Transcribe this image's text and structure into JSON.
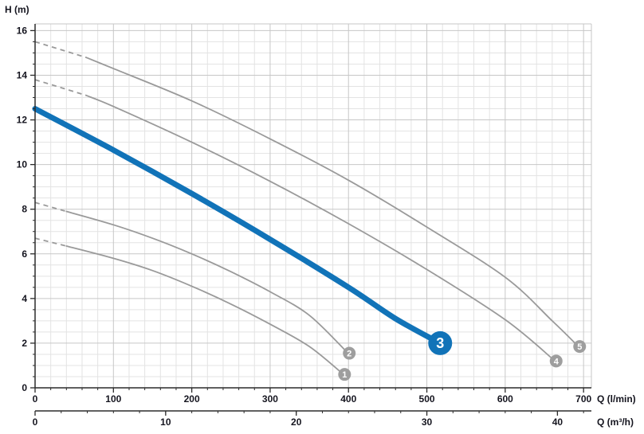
{
  "chart_data": {
    "type": "line",
    "title": "",
    "ylabel": "H (m)",
    "xlabel_primary": "Q (l/min)",
    "xlabel_secondary": "Q (m³/h)",
    "x_range_lmin": [
      0,
      710
    ],
    "y_range_m": [
      0,
      16.3
    ],
    "x_major_ticks": [
      0,
      100,
      200,
      300,
      400,
      500,
      600,
      700
    ],
    "x_minor_step": 20,
    "y_major_ticks": [
      0,
      2,
      4,
      6,
      8,
      10,
      12,
      14,
      16
    ],
    "y_minor_step": 0.5,
    "grid": true,
    "legend": "none",
    "secondary_axis": {
      "unit": "m³/h",
      "ticks": [
        0,
        10,
        20,
        30,
        40
      ],
      "minor_step": 2,
      "lmin_per_unit": 16.6667
    },
    "colors": {
      "highlight": "#1173b8",
      "curve": "#9a9a9a",
      "grid_minor": "#e3e3e3",
      "grid_major": "#c7c7c7",
      "axis": "#2b2b2b",
      "text": "#15151f",
      "badge_gray": "#9e9e9e",
      "badge_text": "#ffffff"
    },
    "series": [
      {
        "label": "1",
        "highlight": false,
        "dashed": [
          [
            0,
            6.7
          ],
          [
            40,
            6.35
          ]
        ],
        "points": [
          [
            40,
            6.35
          ],
          [
            100,
            5.8
          ],
          [
            150,
            5.25
          ],
          [
            200,
            4.55
          ],
          [
            250,
            3.75
          ],
          [
            300,
            2.85
          ],
          [
            350,
            1.85
          ],
          [
            392,
            0.65
          ]
        ],
        "badge_at": [
          395,
          0.6
        ]
      },
      {
        "label": "2",
        "highlight": false,
        "dashed": [
          [
            0,
            8.3
          ],
          [
            40,
            7.9
          ]
        ],
        "points": [
          [
            40,
            7.9
          ],
          [
            100,
            7.3
          ],
          [
            150,
            6.7
          ],
          [
            200,
            6.0
          ],
          [
            250,
            5.2
          ],
          [
            300,
            4.3
          ],
          [
            350,
            3.25
          ],
          [
            398,
            1.6
          ]
        ],
        "badge_at": [
          401,
          1.55
        ]
      },
      {
        "label": "4",
        "highlight": false,
        "dashed": [
          [
            0,
            13.8
          ],
          [
            65,
            13.1
          ]
        ],
        "points": [
          [
            65,
            13.1
          ],
          [
            100,
            12.6
          ],
          [
            200,
            11.0
          ],
          [
            300,
            9.25
          ],
          [
            400,
            7.35
          ],
          [
            500,
            5.3
          ],
          [
            600,
            3.05
          ],
          [
            662,
            1.25
          ]
        ],
        "badge_at": [
          665,
          1.2
        ]
      },
      {
        "label": "5",
        "highlight": false,
        "dashed": [
          [
            0,
            15.5
          ],
          [
            65,
            14.8
          ]
        ],
        "points": [
          [
            65,
            14.8
          ],
          [
            100,
            14.3
          ],
          [
            200,
            12.85
          ],
          [
            300,
            11.15
          ],
          [
            400,
            9.3
          ],
          [
            500,
            7.2
          ],
          [
            600,
            4.95
          ],
          [
            660,
            3.0
          ],
          [
            692,
            1.9
          ]
        ],
        "badge_at": [
          695,
          1.85
        ]
      },
      {
        "label": "3",
        "highlight": true,
        "dashed": [],
        "points": [
          [
            0,
            12.5
          ],
          [
            100,
            10.65
          ],
          [
            200,
            8.7
          ],
          [
            300,
            6.65
          ],
          [
            400,
            4.5
          ],
          [
            460,
            3.1
          ],
          [
            514,
            2.05
          ]
        ],
        "badge_at": [
          517,
          2.0
        ]
      }
    ]
  }
}
